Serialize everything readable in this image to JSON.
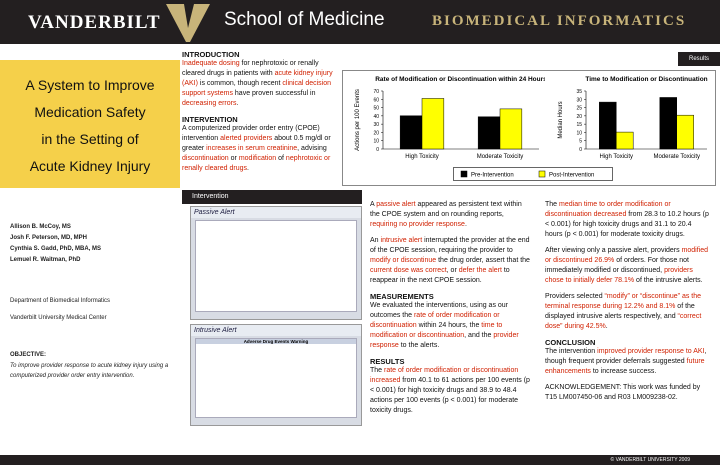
{
  "header": {
    "university": "VANDERBILT",
    "school": "School of Medicine",
    "department": "BIOMEDICAL INFORMATICS"
  },
  "title": [
    "A System to Improve",
    "Medication Safety",
    "in the Setting of",
    "Acute Kidney Injury"
  ],
  "authors": [
    "Allison B. McCoy, MS",
    "Josh F. Peterson, MD, MPH",
    "Cynthia S. Gadd, PhD, MBA, MS",
    "Lemuel R. Waitman, PhD"
  ],
  "affiliation": [
    "Department of Biomedical Informatics",
    "Vanderbilt University Medical Center"
  ],
  "objective": {
    "heading": "OBJECTIVE:",
    "text": "To improve provider response to acute kidney injury using a computerized provider order entry intervention."
  },
  "introduction": {
    "heading": "INTRODUCTION",
    "text": [
      {
        "text": "Inadequate dosing",
        "red": true
      },
      {
        "text": " for nephrotoxic or renally cleared drugs in patients with "
      },
      {
        "text": "acute kidney injury (AKI)",
        "red": true
      },
      {
        "text": " is common, though recent "
      },
      {
        "text": "clinical decision support systems",
        "red": true
      },
      {
        "text": " have proven successful in "
      },
      {
        "text": "decreasing errors",
        "red": true
      },
      {
        "text": "."
      }
    ]
  },
  "intervention": {
    "heading": "INTERVENTION",
    "text": [
      {
        "text": "A computerized provider order entry (CPOE) intervention "
      },
      {
        "text": "alerted providers",
        "red": true
      },
      {
        "text": " about 0.5 mg/dl or greater "
      },
      {
        "text": "increases in serum creatinine",
        "red": true
      },
      {
        "text": ", advising "
      },
      {
        "text": "discontinuation",
        "red": true
      },
      {
        "text": " or "
      },
      {
        "text": "modification",
        "red": true
      },
      {
        "text": " of "
      },
      {
        "text": "nephrotoxic or renally cleared drugs",
        "red": true
      },
      {
        "text": "."
      }
    ]
  },
  "screenshots": {
    "label": "Intervention",
    "passive": "Passive Alert",
    "intrusive": "Intrusive Alert",
    "warning": "Adverse Drug Events Warning"
  },
  "results_tab": "Results",
  "column2": [
    {
      "text": [
        {
          "text": "A "
        },
        {
          "text": "passive alert",
          "red": true
        },
        {
          "text": " appeared as persistent text within the CPOE system and on rounding reports, "
        },
        {
          "text": "requiring no provider response",
          "red": true
        },
        {
          "text": "."
        }
      ]
    },
    {
      "text": [
        {
          "text": "An "
        },
        {
          "text": "intrusive alert",
          "red": true
        },
        {
          "text": " interrupted the provider at the end of the CPOE session, requiring the provider to "
        },
        {
          "text": "modify or discontinue",
          "red": true
        },
        {
          "text": " the drug order, assert that the "
        },
        {
          "text": "current dose was correct",
          "red": true
        },
        {
          "text": ", or "
        },
        {
          "text": "defer the alert",
          "red": true
        },
        {
          "text": " to reappear in the next CPOE session."
        }
      ]
    },
    {
      "heading": "MEASUREMENTS",
      "text": [
        {
          "text": "We evaluated the interventions, using as our outcomes the "
        },
        {
          "text": "rate of order modification or discontinuation",
          "red": true
        },
        {
          "text": " within 24 hours, the "
        },
        {
          "text": "time to modification or discontinuation",
          "red": true
        },
        {
          "text": ", and the "
        },
        {
          "text": "provider response",
          "red": true
        },
        {
          "text": " to the alerts."
        }
      ]
    },
    {
      "heading": "RESULTS",
      "text": [
        {
          "text": "The "
        },
        {
          "text": "rate of order modification or discontinuation increased",
          "red": true
        },
        {
          "text": " from 40.1 to 61 actions per 100 events (p < 0.001) for high toxicity drugs and 38.9 to 48.4 actions per 100 events (p < 0.001) for moderate toxicity drugs."
        }
      ]
    }
  ],
  "column3": [
    {
      "text": [
        {
          "text": "The "
        },
        {
          "text": "median time to order modification or discontinuation decreased",
          "red": true
        },
        {
          "text": " from 28.3 to 10.2 hours (p < 0.001) for high toxicity drugs and 31.1 to 20.4 hours (p < 0.001) for moderate toxicity drugs."
        }
      ]
    },
    {
      "text": [
        {
          "text": "After viewing only a passive alert, providers "
        },
        {
          "text": "modified or discontinued 26.9%",
          "red": true
        },
        {
          "text": " of orders. For those not immediately modified or discontinued, "
        },
        {
          "text": "providers chose to initially defer 78.1%",
          "red": true
        },
        {
          "text": " of the intrusive alerts."
        }
      ]
    },
    {
      "text": [
        {
          "text": "Providers selected "
        },
        {
          "text": "“modify” or “discontinue” as the terminal response during 12.2% and 8.1%",
          "red": true
        },
        {
          "text": " of the displayed intrusive alerts respectively, and "
        },
        {
          "text": "“correct dose” during 42.5%",
          "red": true
        },
        {
          "text": "."
        }
      ]
    },
    {
      "heading": "CONCLUSION",
      "text": [
        {
          "text": "The intervention "
        },
        {
          "text": "improved provider response to AKI",
          "red": true
        },
        {
          "text": ", though frequent provider deferrals suggested "
        },
        {
          "text": "future enhancements",
          "red": true
        },
        {
          "text": " to increase success."
        }
      ]
    },
    {
      "text": [
        {
          "text": "ACKNOWLEDGEMENT: This work was funded by T15 LM007450-06 and R03 LM009238-02."
        }
      ]
    }
  ],
  "footer": "© VANDERBILT UNIVERSITY 2009",
  "chart_data": [
    {
      "type": "bar",
      "title": "Rate of Modification or Discontinuation within 24 Hours",
      "y_label": "Actions per 100 Events",
      "categories": [
        "High Toxicity",
        "Moderate Toxicity"
      ],
      "series": [
        {
          "name": "Pre-Intervention",
          "color": "#000000",
          "values": [
            40.1,
            38.9
          ]
        },
        {
          "name": "Post-Intervention",
          "color": "#ffff00",
          "values": [
            61,
            48.4
          ]
        }
      ],
      "ylim": [
        0,
        70
      ],
      "yticks": [
        0,
        10,
        20,
        30,
        40,
        50,
        60,
        70
      ]
    },
    {
      "type": "bar",
      "title": "Time to Modification or Discontinuation",
      "y_label": "Median Hours",
      "categories": [
        "High Toxicity",
        "Moderate Toxicity"
      ],
      "series": [
        {
          "color": "#000000",
          "values": [
            28.3,
            31.1
          ]
        },
        {
          "color": "#ffff00",
          "values": [
            10.2,
            20.4
          ]
        }
      ],
      "ylim": [
        0,
        35
      ],
      "yticks": [
        0,
        5,
        10,
        15,
        20,
        25,
        30,
        35
      ]
    }
  ]
}
